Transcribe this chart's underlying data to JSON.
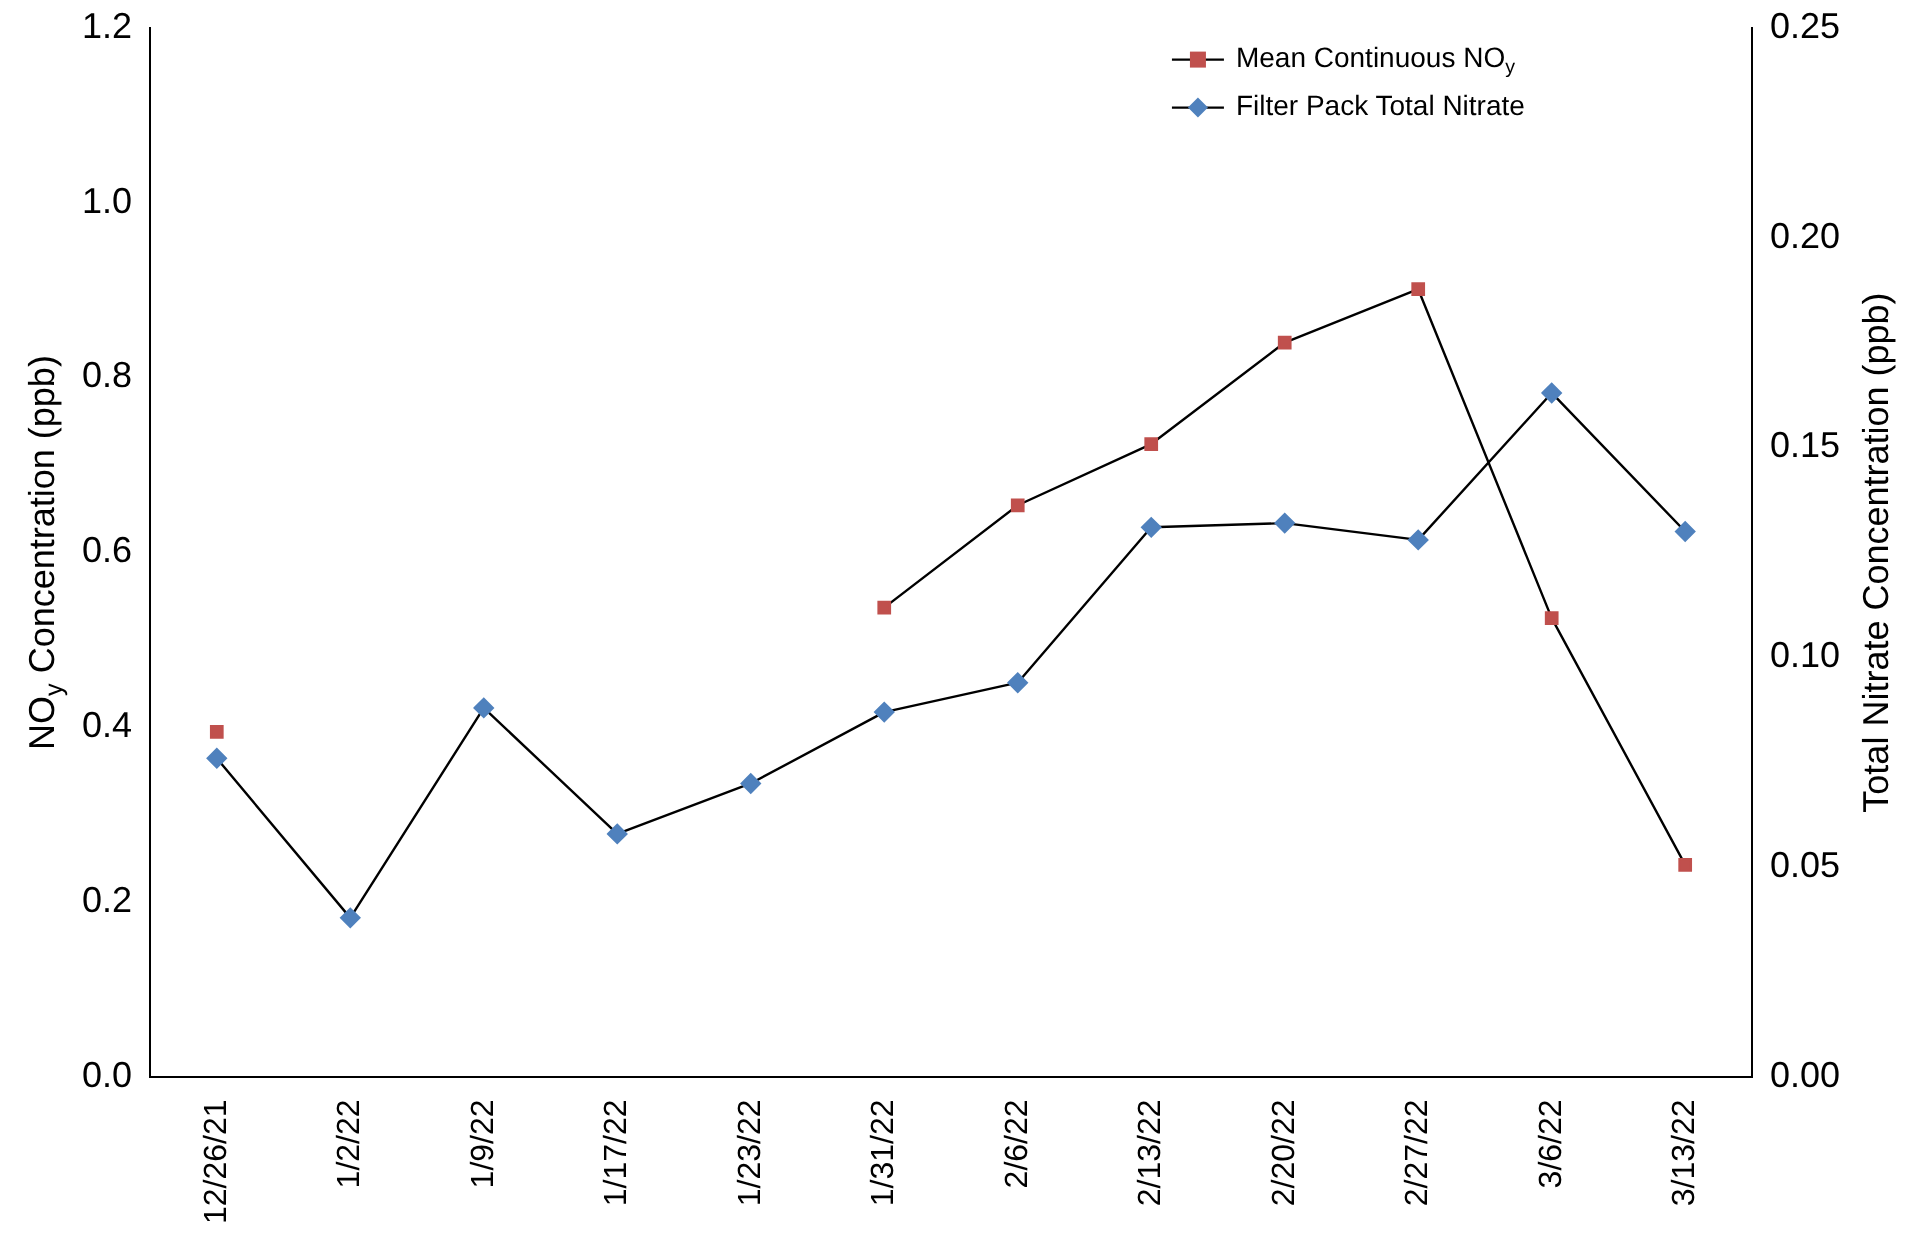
{
  "chart_data": {
    "type": "line",
    "categories": [
      "12/26/21",
      "1/2/22",
      "1/9/22",
      "1/17/22",
      "1/23/22",
      "1/31/22",
      "2/6/22",
      "2/13/22",
      "2/20/22",
      "2/27/22",
      "3/6/22",
      "3/13/22"
    ],
    "ylabel": "NO$_{y}$ Concentration (ppb)",
    "y2label": "Total Nitrate Concentration (ppb)",
    "ylim": [
      0,
      1.2
    ],
    "yticks": [
      {
        "value": 0,
        "label": "0.0"
      },
      {
        "value": 0.2,
        "label": "0.2"
      },
      {
        "value": 0.4,
        "label": "0.4"
      },
      {
        "value": 0.6,
        "label": "0.6"
      },
      {
        "value": 0.8,
        "label": "0.8"
      },
      {
        "value": 1,
        "label": "1.0"
      },
      {
        "value": 1.2,
        "label": "1.2"
      }
    ],
    "y2lim": [
      0,
      0.25
    ],
    "y2ticks": [
      {
        "value": 0,
        "label": "0.00"
      },
      {
        "value": 0.05,
        "label": "0.05"
      },
      {
        "value": 0.1,
        "label": "0.10"
      },
      {
        "value": 0.15,
        "label": "0.15"
      },
      {
        "value": 0.2,
        "label": "0.20"
      },
      {
        "value": 0.25,
        "label": "0.25"
      }
    ],
    "grid": false,
    "legend": "top right",
    "series": [
      {
        "name": "Mean Continuous NO$_{y}$",
        "color": "#c0504d",
        "marker": "square",
        "values": [
          0.395,
          null,
          null,
          null,
          null,
          0.537,
          0.654,
          0.724,
          0.84,
          0.901,
          0.525,
          0.243
        ]
      },
      {
        "name": "Filter Pack Total Nitrate",
        "color": "#4f81bd",
        "marker": "diamond",
        "axis": "y2",
        "values": [
          0.076,
          0.038,
          0.088,
          0.058,
          0.07,
          0.087,
          0.094,
          0.131,
          0.132,
          0.128,
          0.163,
          0.13
        ]
      }
    ]
  }
}
